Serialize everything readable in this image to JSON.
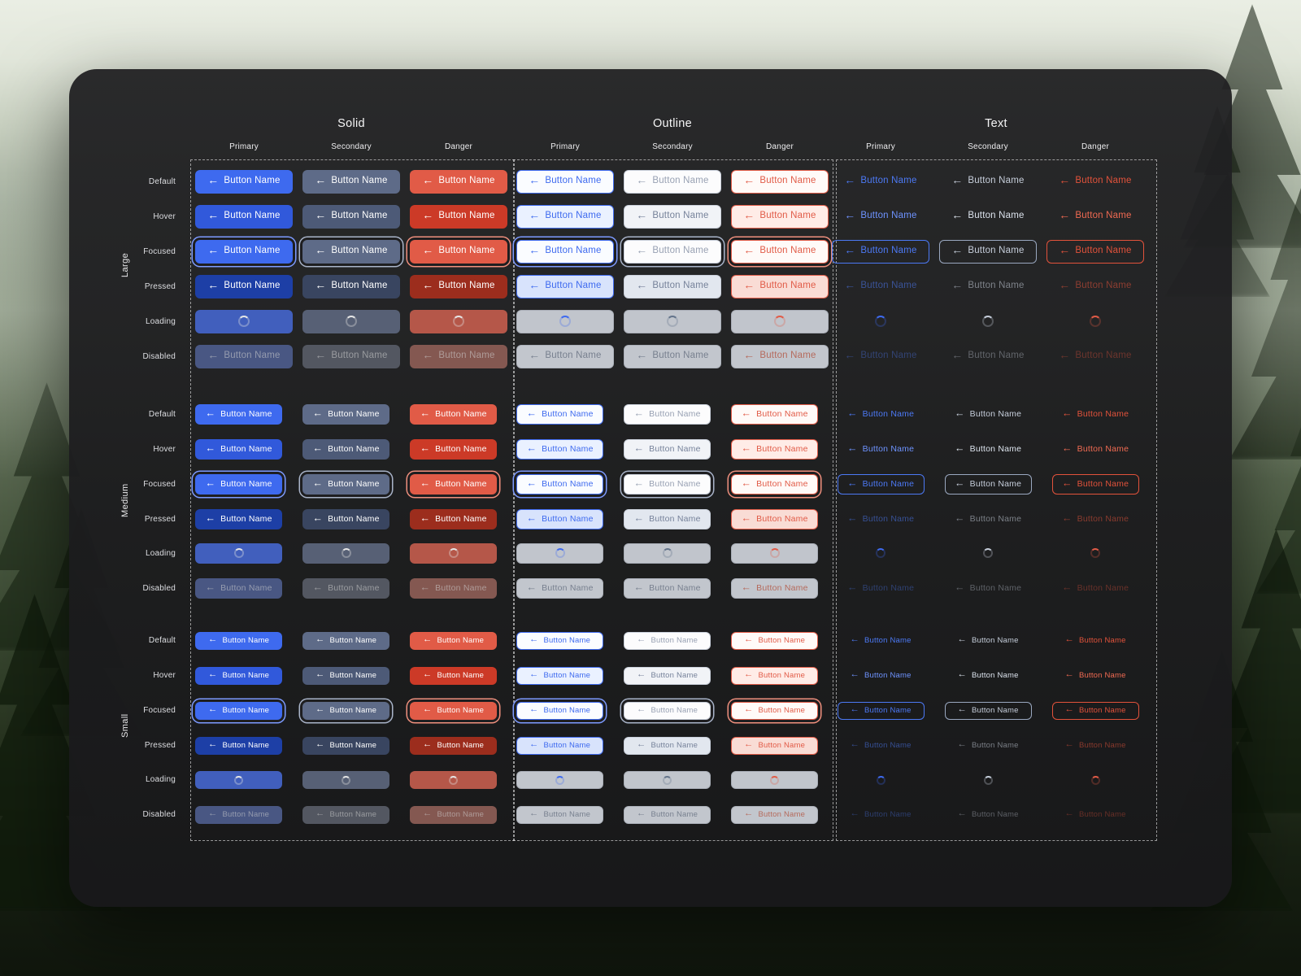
{
  "sheet": {
    "groups": [
      {
        "label": "Solid",
        "variants": [
          "Primary",
          "Secondary",
          "Danger"
        ]
      },
      {
        "label": "Outline",
        "variants": [
          "Primary",
          "Secondary",
          "Danger"
        ]
      },
      {
        "label": "Text",
        "variants": [
          "Primary",
          "Secondary",
          "Danger"
        ]
      }
    ],
    "sizes": [
      {
        "label": "Large",
        "states": [
          "Default",
          "Hover",
          "Focused",
          "Pressed",
          "Loading",
          "Disabled"
        ]
      },
      {
        "label": "Medium",
        "states": [
          "Default",
          "Hover",
          "Focused",
          "Pressed",
          "Loading",
          "Disabled"
        ]
      },
      {
        "label": "Small",
        "states": [
          "Default",
          "Hover",
          "Focused",
          "Pressed",
          "Loading",
          "Disabled"
        ]
      }
    ],
    "button_label": "Button Name",
    "icons": {
      "arrow_left": "←"
    },
    "colors": {
      "primary": "#3E6AEF",
      "primary_hover": "#3159DB",
      "primary_pressed": "#1D3FA6",
      "secondary": "#5E6B88",
      "secondary_hover": "#4D5A77",
      "secondary_pressed": "#394560",
      "danger": "#E15B47",
      "danger_hover": "#CC3A27",
      "danger_pressed": "#9C2D1D",
      "panel_background": "#1E1E20"
    }
  }
}
